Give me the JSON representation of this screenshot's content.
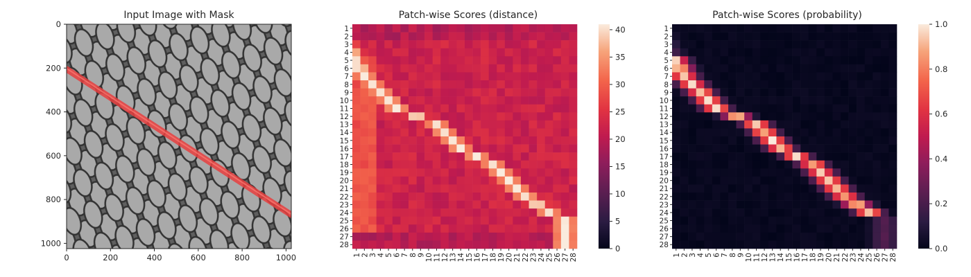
{
  "chart_data": [
    {
      "type": "image",
      "title": "Input Image with Mask",
      "x_ticks": [
        "0",
        "200",
        "400",
        "600",
        "800",
        "1000"
      ],
      "y_ticks": [
        "0",
        "200",
        "400",
        "600",
        "800",
        "1000"
      ],
      "xlim": [
        0,
        1024
      ],
      "ylim": [
        1024,
        0
      ],
      "mask_color": "#e8403f",
      "mask_line": [
        [
          0,
          205
        ],
        [
          1024,
          870
        ]
      ]
    },
    {
      "type": "heatmap",
      "title": "Patch-wise Scores (distance)",
      "rows": 28,
      "cols": 28,
      "labels": [
        "1",
        "2",
        "3",
        "4",
        "5",
        "6",
        "7",
        "8",
        "9",
        "10",
        "11",
        "12",
        "13",
        "14",
        "15",
        "16",
        "17",
        "18",
        "19",
        "20",
        "21",
        "22",
        "23",
        "24",
        "25",
        "26",
        "27",
        "28"
      ],
      "vmin": 0,
      "vmax": 41,
      "colorbar_ticks": [
        "0",
        "5",
        "10",
        "15",
        "20",
        "25",
        "30",
        "35",
        "40"
      ],
      "band": [
        [
          7,
          2
        ],
        [
          11,
          6
        ],
        [
          13,
          11
        ],
        [
          16,
          14
        ],
        [
          18,
          18
        ],
        [
          22,
          22
        ],
        [
          24,
          25
        ],
        [
          25,
          27
        ]
      ],
      "colormap": "rocket"
    },
    {
      "type": "heatmap",
      "title": "Patch-wise Scores (probability)",
      "rows": 28,
      "cols": 28,
      "labels": [
        "1",
        "2",
        "3",
        "4",
        "5",
        "6",
        "7",
        "8",
        "9",
        "10",
        "11",
        "12",
        "13",
        "14",
        "15",
        "16",
        "17",
        "18",
        "19",
        "20",
        "21",
        "22",
        "23",
        "24",
        "25",
        "26",
        "27",
        "28"
      ],
      "vmin": 0,
      "vmax": 1,
      "colorbar_ticks": [
        "0.0",
        "0.2",
        "0.4",
        "0.6",
        "0.8",
        "1.0"
      ],
      "band": [
        [
          7,
          2
        ],
        [
          11,
          6
        ],
        [
          13,
          11
        ],
        [
          16,
          14
        ],
        [
          18,
          18
        ],
        [
          22,
          22
        ],
        [
          24,
          25
        ],
        [
          25,
          27
        ]
      ],
      "colormap": "rocket"
    }
  ]
}
